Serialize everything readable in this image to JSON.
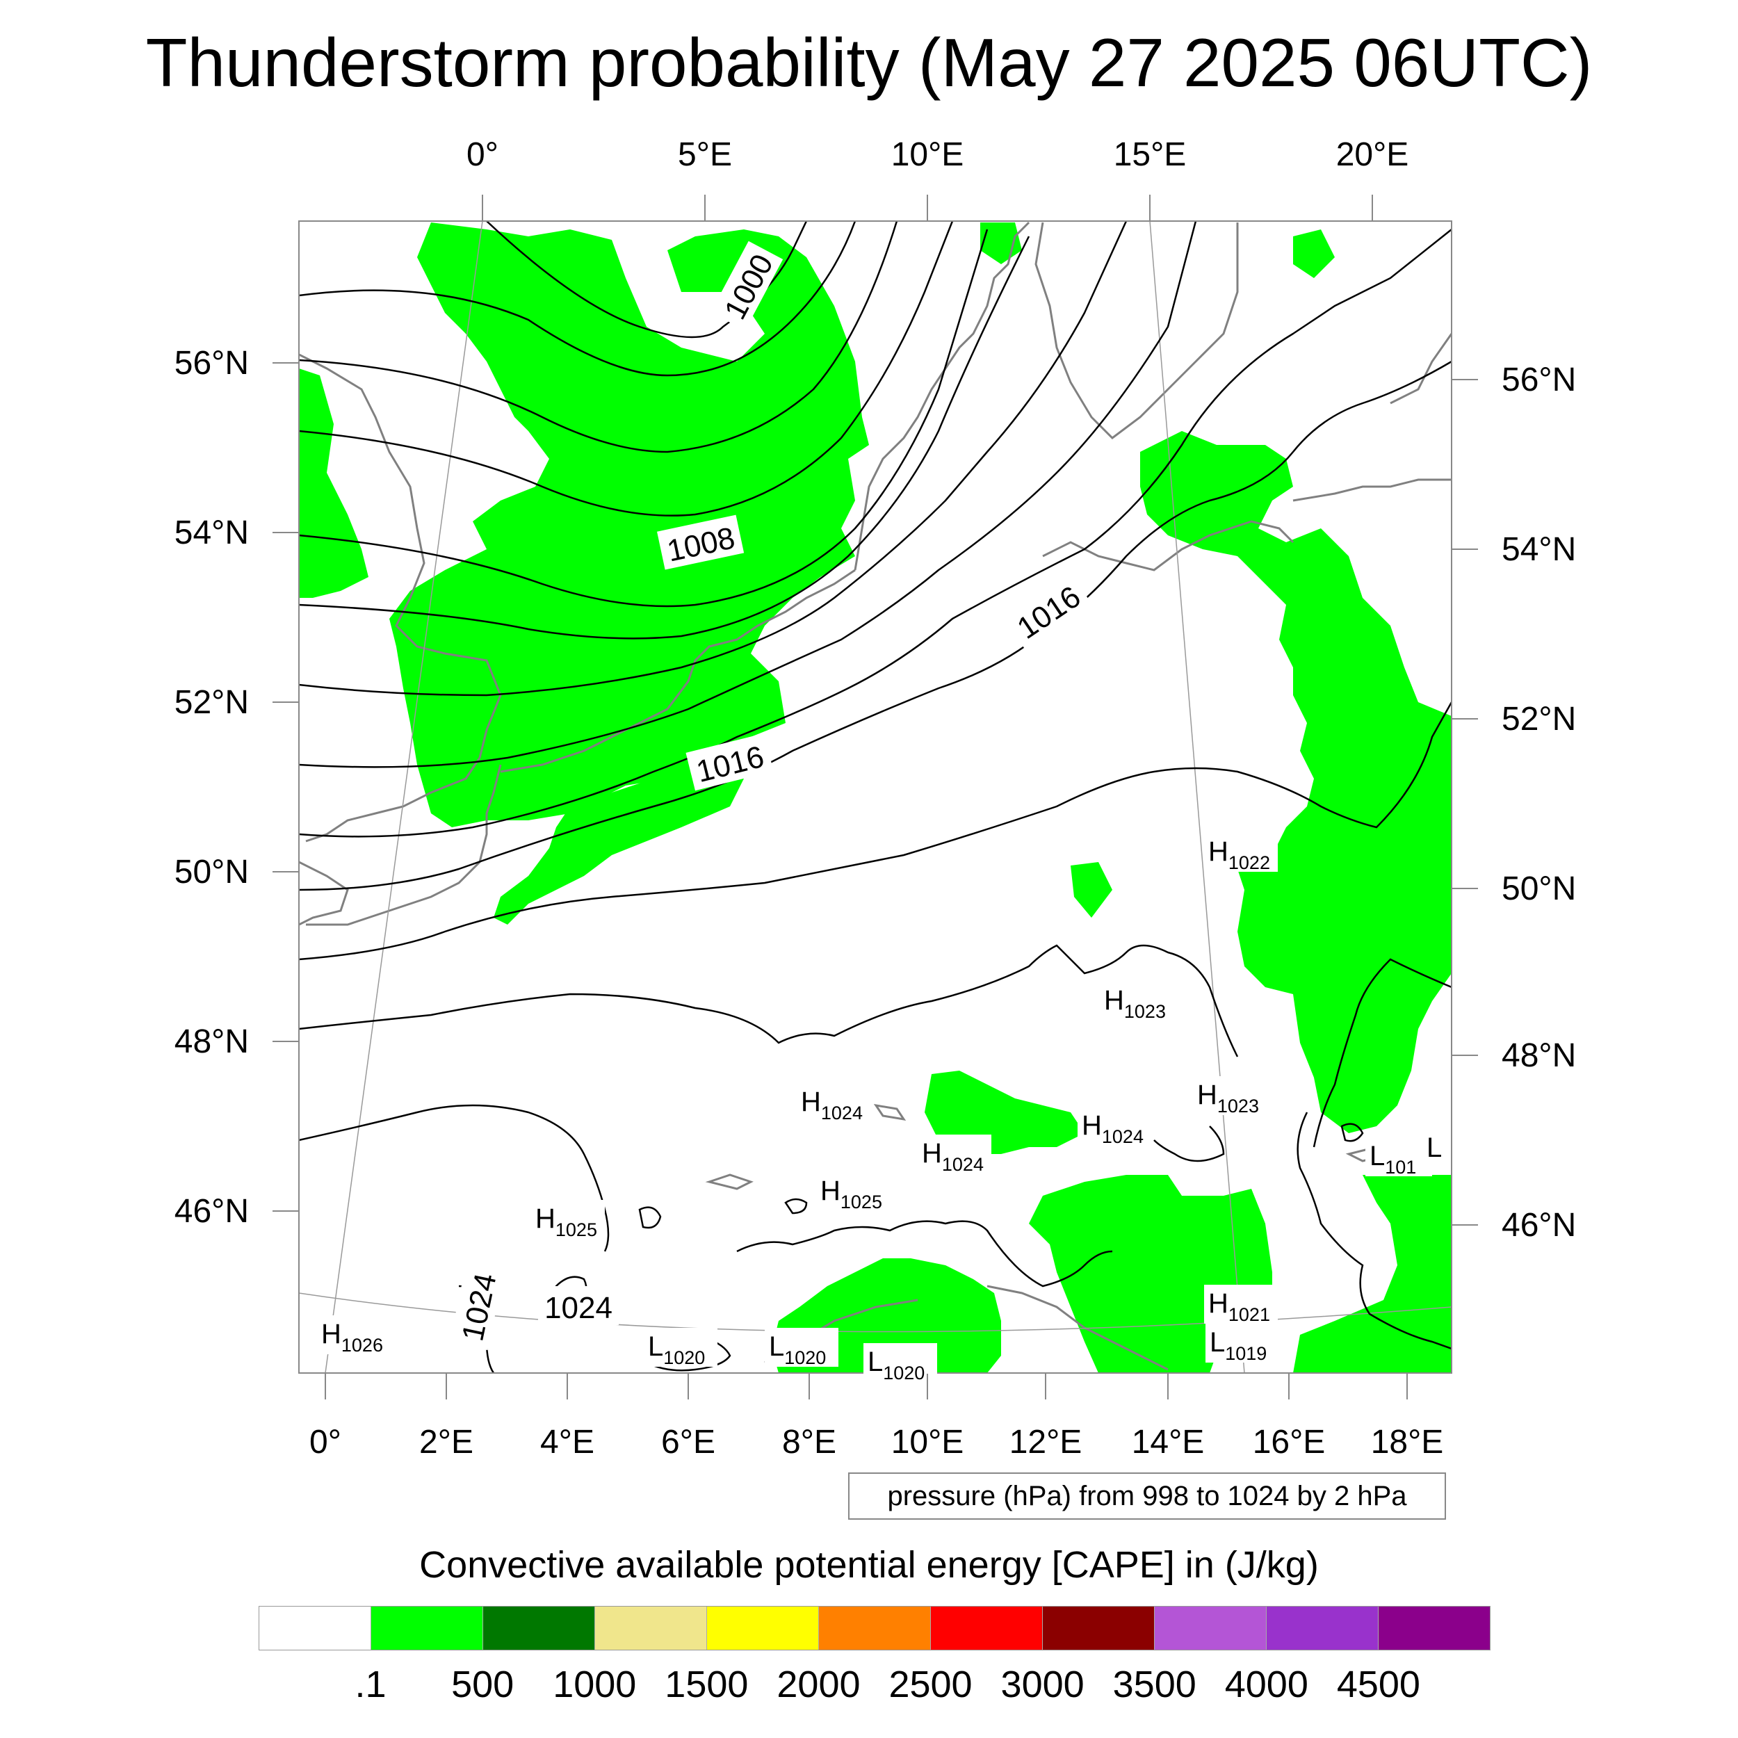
{
  "title": "Thunderstorm probability (May 27 2025 06UTC)",
  "top_axis_labels": [
    "0°",
    "5°E",
    "10°E",
    "15°E",
    "20°E"
  ],
  "left_axis_labels": [
    "56°N",
    "54°N",
    "52°N",
    "50°N",
    "48°N",
    "46°N"
  ],
  "right_axis_labels": [
    "56°N",
    "54°N",
    "52°N",
    "50°N",
    "48°N",
    "46°N"
  ],
  "bottom_axis_labels": [
    "0°",
    "2°E",
    "4°E",
    "6°E",
    "8°E",
    "10°E",
    "12°E",
    "14°E",
    "16°E",
    "18°E"
  ],
  "isobar_labels": [
    "1000",
    "1008",
    "1016",
    "1016",
    "1024",
    "1024"
  ],
  "pressure_centers": [
    {
      "type": "H",
      "value": "1022"
    },
    {
      "type": "H",
      "value": "1023"
    },
    {
      "type": "H",
      "value": "1023"
    },
    {
      "type": "H",
      "value": "1024"
    },
    {
      "type": "H",
      "value": "1024"
    },
    {
      "type": "H",
      "value": "1024"
    },
    {
      "type": "H",
      "value": "1025"
    },
    {
      "type": "H",
      "value": "1025"
    },
    {
      "type": "H",
      "value": "1026"
    },
    {
      "type": "H",
      "value": "1021"
    },
    {
      "type": "L",
      "value": "1020"
    },
    {
      "type": "L",
      "value": "1020"
    },
    {
      "type": "L",
      "value": "1020"
    },
    {
      "type": "L",
      "value": "1019"
    },
    {
      "type": "L",
      "value": "101"
    },
    {
      "type": "L",
      "value": ""
    }
  ],
  "pressure_note": "pressure (hPa) from 998 to 1024 by 2 hPa",
  "legend": {
    "title": "Convective available potential energy [CAPE] in (J/kg)",
    "colors": [
      "#ffffff",
      "#00ff00",
      "#007800",
      "#f0e68c",
      "#ffff00",
      "#ff8000",
      "#ff0000",
      "#8b0000",
      "#b455d6",
      "#9932cc",
      "#8b008b"
    ],
    "tick_labels": [
      ".1",
      "500",
      "1000",
      "1500",
      "2000",
      "2500",
      "3000",
      "3500",
      "4000",
      "4500"
    ]
  },
  "colors": {
    "cape_fill": "#00ff00",
    "coastline": "#808080",
    "isobar": "#000000",
    "graticule": "#999999"
  }
}
